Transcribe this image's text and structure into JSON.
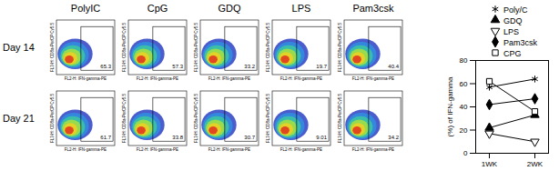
{
  "chart_data": {
    "type": "line",
    "y_label": "(%) of IFN-gamma",
    "categories": [
      "1WK",
      "2WK"
    ],
    "ylim": [
      0,
      80
    ],
    "yticks": [
      0,
      20,
      40,
      60,
      80
    ],
    "legend": "top-right",
    "series": [
      {
        "name": "Poly/C",
        "color": "#000000",
        "marker": "asterisk",
        "values": [
          57,
          64
        ]
      },
      {
        "name": "GDQ",
        "color": "#000000",
        "marker": "triangle",
        "values": [
          22,
          33
        ]
      },
      {
        "name": "LPS",
        "color": "#000000",
        "marker": "triangle-down-open",
        "values": [
          17,
          10
        ]
      },
      {
        "name": "Pam3csk",
        "color": "#000000",
        "marker": "diamond",
        "values": [
          42,
          47
        ]
      },
      {
        "name": "CPG",
        "color": "#000000",
        "marker": "square-open",
        "values": [
          62,
          36
        ]
      }
    ]
  },
  "flow_panels": {
    "columns": [
      "PolyIC",
      "CpG",
      "GDQ",
      "LPS",
      "Pam3csk"
    ],
    "rows": [
      {
        "label": "Day 14",
        "gates": [
          "65.3",
          "57.3",
          "33.2",
          "19.7",
          "40.4"
        ]
      },
      {
        "label": "Day 21",
        "gates": [
          "61.7",
          "33.8",
          "30.7",
          "9.01",
          "34.2"
        ]
      }
    ],
    "x_label": "FL2-H: IFN-gamma-PE",
    "y_label": "FL3-H: CD8a-PerCP Cy5.5"
  }
}
